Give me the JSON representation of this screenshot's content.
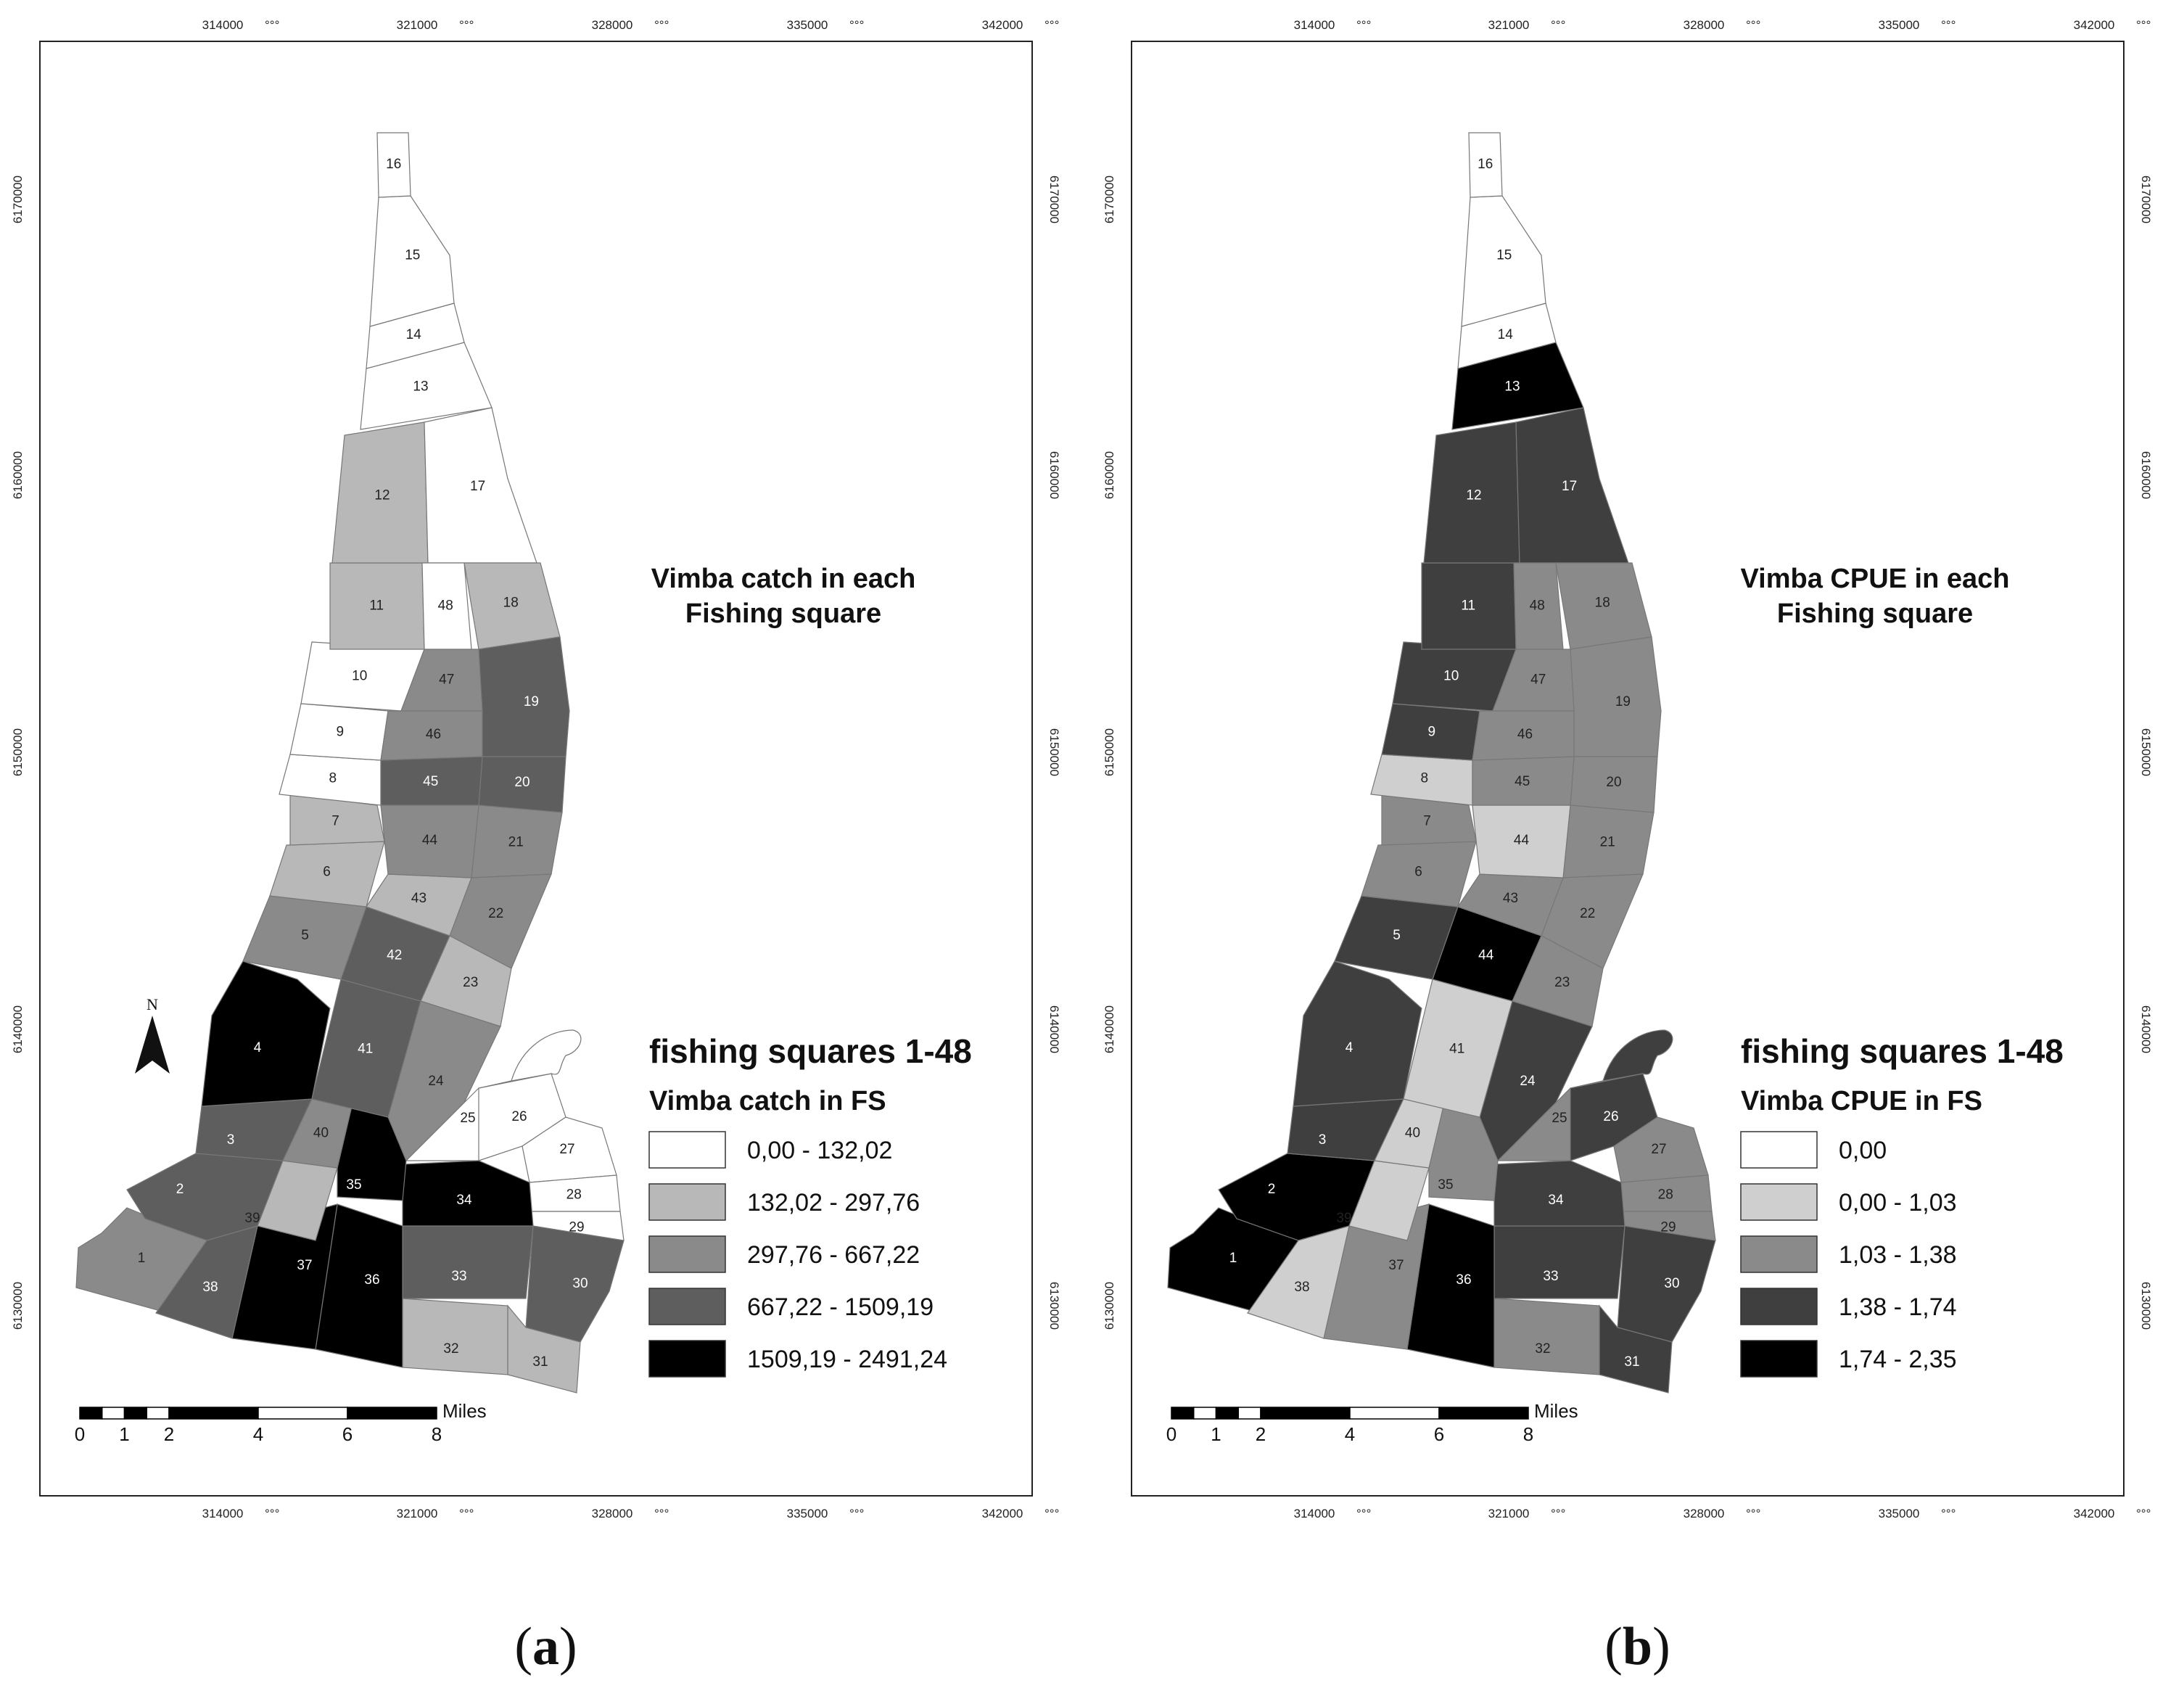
{
  "panels": [
    {
      "id": "a",
      "caption_letter": "a",
      "title_lines": [
        "Vimba catch in each",
        "Fishing square"
      ],
      "legend_title": "fishing squares 1-48",
      "legend_subtitle": "Vimba  catch in FS",
      "classes": [
        {
          "label": "0,00 - 132,02",
          "color": "#ffffff"
        },
        {
          "label": "132,02 - 297,76",
          "color": "#b8b8b8"
        },
        {
          "label": "297,76 - 667,22",
          "color": "#8a8a8a"
        },
        {
          "label": "667,22 - 1509,19",
          "color": "#5e5e5e"
        },
        {
          "label": "1509,19 - 2491,24",
          "color": "#000000"
        }
      ],
      "square_class": {
        "1": 2,
        "2": 3,
        "3": 3,
        "4": 4,
        "5": 2,
        "6": 1,
        "7": 1,
        "8": 0,
        "9": 0,
        "10": 0,
        "11": 1,
        "12": 1,
        "13": 0,
        "14": 0,
        "15": 0,
        "16": 0,
        "17": 0,
        "18": 1,
        "19": 3,
        "20": 3,
        "21": 2,
        "22": 2,
        "23": 1,
        "24": 2,
        "25": 0,
        "26": 0,
        "27": 0,
        "28": 0,
        "29": 0,
        "30": 3,
        "31": 1,
        "32": 1,
        "33": 3,
        "34": 4,
        "35": 4,
        "36": 4,
        "37": 4,
        "38": 3,
        "39": 1,
        "40": 2,
        "41": 3,
        "42": 3,
        "43": 1,
        "44": 2,
        "45": 3,
        "46": 2,
        "47": 2,
        "48": 0
      },
      "square_labels": {
        "19": "19",
        "20": "20"
      },
      "show_north_arrow": true,
      "north_label": "N"
    },
    {
      "id": "b",
      "caption_letter": "b",
      "title_lines": [
        "Vimba CPUE in each",
        "Fishing square"
      ],
      "legend_title": "fishing squares 1-48",
      "legend_subtitle": "Vimba CPUE in FS",
      "classes": [
        {
          "label": "0,00",
          "color": "#ffffff"
        },
        {
          "label": "0,00 - 1,03",
          "color": "#cfcfcf"
        },
        {
          "label": "1,03 - 1,38",
          "color": "#8a8a8a"
        },
        {
          "label": "1,38 - 1,74",
          "color": "#3f3f3f"
        },
        {
          "label": "1,74 - 2,35",
          "color": "#000000"
        }
      ],
      "square_class": {
        "1": 4,
        "2": 4,
        "3": 3,
        "4": 3,
        "5": 3,
        "6": 2,
        "7": 2,
        "8": 1,
        "9": 3,
        "10": 3,
        "11": 3,
        "12": 3,
        "13": 4,
        "14": 0,
        "15": 0,
        "16": 0,
        "17": 3,
        "18": 2,
        "19": 2,
        "20": 2,
        "21": 2,
        "22": 2,
        "23": 2,
        "24": 3,
        "25": 2,
        "26": 3,
        "27": 2,
        "28": 2,
        "29": 2,
        "30": 3,
        "31": 3,
        "32": 2,
        "33": 3,
        "34": 3,
        "35": 2,
        "36": 4,
        "37": 2,
        "38": 1,
        "39": 1,
        "40": 1,
        "41": 1,
        "42": 4,
        "43": 2,
        "44": 1,
        "45": 2,
        "46": 2,
        "47": 2,
        "48": 2
      },
      "square_labels": {
        "42": "44"
      },
      "show_north_arrow": false,
      "north_label": ""
    }
  ],
  "axes": {
    "x_ticks": [
      "314000",
      "321000",
      "328000",
      "335000",
      "342000"
    ],
    "y_ticks": [
      "6170000",
      "6160000",
      "6150000",
      "6140000",
      "6130000"
    ],
    "tick_suffix": "°°°"
  },
  "scale_bar": {
    "unit": "Miles",
    "labels": [
      "0",
      "1",
      "2",
      "4",
      "6",
      "8"
    ]
  }
}
